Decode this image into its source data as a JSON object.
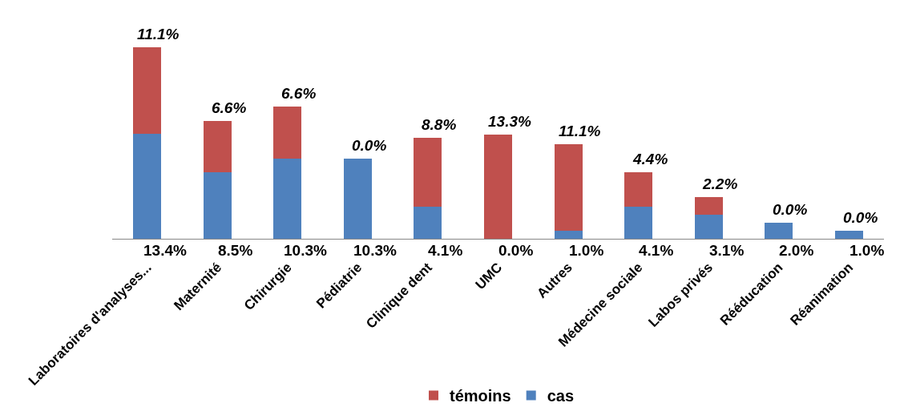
{
  "chart_data": {
    "type": "bar",
    "stacked": true,
    "legend": "bottom",
    "categories": [
      "Laboratoires d'analyses...",
      "Maternité",
      "Chirurgie",
      "Pédiatrie",
      "Clinique dent",
      "UMC",
      "Autres",
      "Médecine sociale",
      "Labos privés",
      "Rééducation",
      "Réanimation"
    ],
    "series": [
      {
        "name": "cas",
        "color": "#4f81bd",
        "values": [
          13.4,
          8.5,
          10.3,
          10.3,
          4.1,
          0.0,
          1.0,
          4.1,
          3.1,
          2.0,
          1.0
        ],
        "value_labels": [
          "13.4%",
          "8.5%",
          "10.3%",
          "10.3%",
          "4.1%",
          "0.0%",
          "1.0%",
          "4.1%",
          "3.1%",
          "2.0%",
          "1.0%"
        ]
      },
      {
        "name": "témoins",
        "color": "#c0504d",
        "values": [
          11.1,
          6.6,
          6.6,
          0.0,
          8.8,
          13.3,
          11.1,
          4.4,
          2.2,
          0.0,
          0.0
        ],
        "value_labels": [
          "11.1%",
          "6.6%",
          "6.6%",
          "0.0%",
          "8.8%",
          "13.3%",
          "11.1%",
          "4.4%",
          "2.2%",
          "0.0%",
          "0.0%"
        ]
      }
    ]
  }
}
